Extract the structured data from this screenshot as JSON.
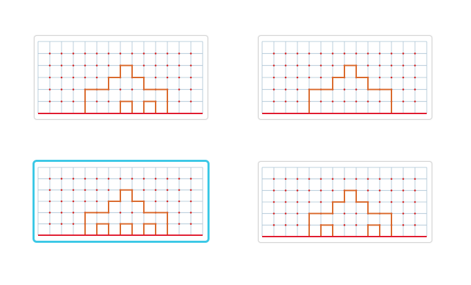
{
  "colors": {
    "grid_line": "#a7c0d2",
    "grid_dot": "#d62828",
    "ground_line": "#e0192e",
    "shape_stroke": "#d9692b",
    "selected_border": "#3cc8e6",
    "card_border": "#d3d3d3"
  },
  "grid": {
    "columns": 14,
    "rows": 6
  },
  "choices": [
    {
      "id": "A",
      "selected": false,
      "outline": [
        [
          4,
          6
        ],
        [
          4,
          4
        ],
        [
          6,
          4
        ],
        [
          6,
          3
        ],
        [
          7,
          3
        ],
        [
          7,
          2
        ],
        [
          8,
          2
        ],
        [
          8,
          3
        ],
        [
          9,
          3
        ],
        [
          9,
          4
        ],
        [
          11,
          4
        ],
        [
          11,
          6
        ]
      ],
      "openings": [
        [
          [
            7,
            6
          ],
          [
            7,
            5
          ],
          [
            8,
            5
          ],
          [
            8,
            6
          ]
        ],
        [
          [
            9,
            6
          ],
          [
            9,
            5
          ],
          [
            10,
            5
          ],
          [
            10,
            6
          ]
        ]
      ]
    },
    {
      "id": "B",
      "selected": false,
      "outline": [
        [
          4,
          6
        ],
        [
          4,
          4
        ],
        [
          6,
          4
        ],
        [
          6,
          3
        ],
        [
          7,
          3
        ],
        [
          7,
          2
        ],
        [
          8,
          2
        ],
        [
          8,
          3
        ],
        [
          9,
          3
        ],
        [
          9,
          4
        ],
        [
          11,
          4
        ],
        [
          11,
          6
        ]
      ],
      "openings": []
    },
    {
      "id": "C",
      "selected": true,
      "outline": [
        [
          4,
          6
        ],
        [
          4,
          4
        ],
        [
          6,
          4
        ],
        [
          6,
          3
        ],
        [
          7,
          3
        ],
        [
          7,
          2
        ],
        [
          8,
          2
        ],
        [
          8,
          3
        ],
        [
          9,
          3
        ],
        [
          9,
          4
        ],
        [
          11,
          4
        ],
        [
          11,
          6
        ]
      ],
      "openings": [
        [
          [
            5,
            6
          ],
          [
            5,
            5
          ],
          [
            6,
            5
          ],
          [
            6,
            6
          ]
        ],
        [
          [
            7,
            6
          ],
          [
            7,
            5
          ],
          [
            8,
            5
          ],
          [
            8,
            6
          ]
        ],
        [
          [
            9,
            6
          ],
          [
            9,
            5
          ],
          [
            10,
            5
          ],
          [
            10,
            6
          ]
        ]
      ]
    },
    {
      "id": "D",
      "selected": false,
      "outline": [
        [
          4,
          6
        ],
        [
          4,
          4
        ],
        [
          6,
          4
        ],
        [
          6,
          3
        ],
        [
          7,
          3
        ],
        [
          7,
          2
        ],
        [
          8,
          2
        ],
        [
          8,
          3
        ],
        [
          9,
          3
        ],
        [
          9,
          4
        ],
        [
          11,
          4
        ],
        [
          11,
          6
        ]
      ],
      "openings": [
        [
          [
            5,
            6
          ],
          [
            5,
            5
          ],
          [
            6,
            5
          ],
          [
            6,
            6
          ]
        ],
        [
          [
            9,
            6
          ],
          [
            9,
            5
          ],
          [
            10,
            5
          ],
          [
            10,
            6
          ]
        ]
      ]
    }
  ]
}
